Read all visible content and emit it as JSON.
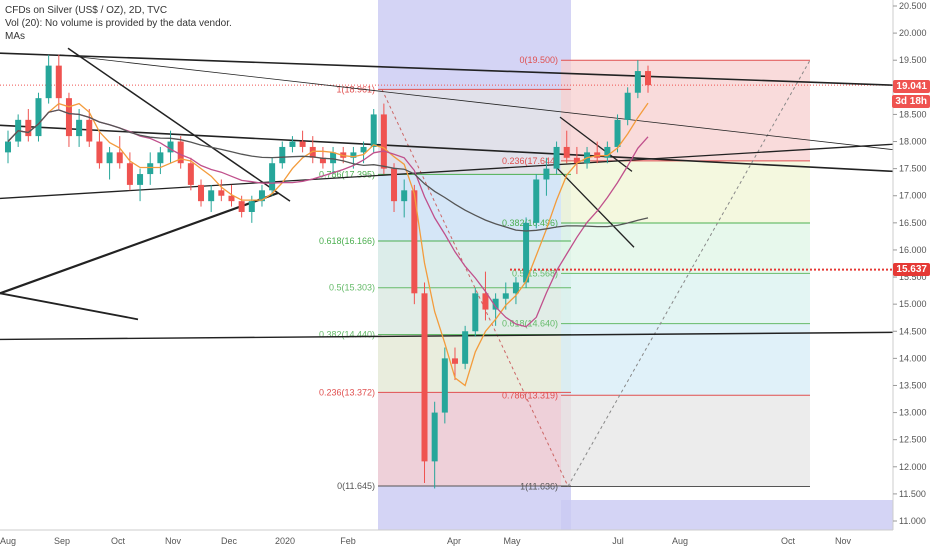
{
  "header": {
    "title": "CFDs on Silver (US$ / OZ), 2D, TVC",
    "volume_note": "Vol (20): No volume is provided by the data vendor.",
    "indicator": "MAs"
  },
  "colors": {
    "up": "#26a69a",
    "down": "#ef5350",
    "ma_fast": "#f39c3c",
    "ma_mid": "#c0508c",
    "ma_slow": "#555555",
    "trendline": "#222222",
    "price_tag": "#ef5350",
    "level_tag": "#e53935"
  },
  "price_tags": {
    "last": "19.041",
    "countdown": "3d 18h",
    "level": "15.637"
  },
  "chart_data": {
    "type": "candlestick",
    "title": "CFDs on Silver (US$ / OZ), 2D, TVC",
    "ylim": [
      10.8,
      20.6
    ],
    "y_ticks": [
      "20.500",
      "20.000",
      "19.500",
      "19.000",
      "18.500",
      "18.000",
      "17.500",
      "17.000",
      "16.500",
      "16.000",
      "15.500",
      "15.000",
      "14.500",
      "14.000",
      "13.500",
      "13.000",
      "12.500",
      "12.000",
      "11.500",
      "11.000"
    ],
    "x_ticks": [
      "Aug",
      "Sep",
      "Oct",
      "Nov",
      "Dec",
      "2020",
      "Feb",
      "Apr",
      "May",
      "Jul",
      "Aug",
      "Oct",
      "Nov"
    ],
    "fib_left": {
      "levels": [
        {
          "label": "1(18.961)",
          "value": 18.961
        },
        {
          "label": "0.786(17.395)",
          "value": 17.395
        },
        {
          "label": "0.618(16.166)",
          "value": 16.166
        },
        {
          "label": "0.5(15.303)",
          "value": 15.303
        },
        {
          "label": "0.382(14.440)",
          "value": 14.44
        },
        {
          "label": "0.236(13.372)",
          "value": 13.372
        },
        {
          "label": "0(11.645)",
          "value": 11.645
        }
      ]
    },
    "fib_right": {
      "levels": [
        {
          "label": "0(19.500)",
          "value": 19.5
        },
        {
          "label": "0.236(17.644)",
          "value": 17.644
        },
        {
          "label": "0.382(16.496)",
          "value": 16.496
        },
        {
          "label": "0.5(15.568)",
          "value": 15.568
        },
        {
          "label": "0.618(14.640)",
          "value": 14.64
        },
        {
          "label": "0.786(13.319)",
          "value": 13.319
        },
        {
          "label": "1(11.636)",
          "value": 11.636
        }
      ]
    },
    "candles": [
      [
        17.8,
        18.2,
        17.6,
        18.0
      ],
      [
        18.0,
        18.5,
        17.9,
        18.4
      ],
      [
        18.4,
        18.6,
        18.0,
        18.1
      ],
      [
        18.1,
        18.9,
        18.0,
        18.8
      ],
      [
        18.8,
        19.6,
        18.7,
        19.4
      ],
      [
        19.4,
        19.6,
        18.6,
        18.8
      ],
      [
        18.8,
        18.9,
        17.9,
        18.1
      ],
      [
        18.1,
        18.6,
        17.9,
        18.4
      ],
      [
        18.4,
        18.6,
        17.9,
        18.0
      ],
      [
        18.0,
        18.2,
        17.5,
        17.6
      ],
      [
        17.6,
        17.9,
        17.3,
        17.8
      ],
      [
        17.8,
        18.1,
        17.5,
        17.6
      ],
      [
        17.6,
        17.8,
        17.1,
        17.2
      ],
      [
        17.2,
        17.5,
        16.9,
        17.4
      ],
      [
        17.4,
        17.8,
        17.2,
        17.6
      ],
      [
        17.6,
        17.9,
        17.4,
        17.8
      ],
      [
        17.8,
        18.2,
        17.6,
        18.0
      ],
      [
        18.0,
        18.1,
        17.5,
        17.6
      ],
      [
        17.6,
        17.7,
        17.1,
        17.2
      ],
      [
        17.2,
        17.3,
        16.8,
        16.9
      ],
      [
        16.9,
        17.2,
        16.7,
        17.1
      ],
      [
        17.1,
        17.3,
        16.9,
        17.0
      ],
      [
        17.0,
        17.2,
        16.8,
        16.9
      ],
      [
        16.9,
        17.0,
        16.6,
        16.7
      ],
      [
        16.7,
        17.0,
        16.5,
        16.9
      ],
      [
        16.9,
        17.2,
        16.8,
        17.1
      ],
      [
        17.1,
        17.7,
        17.0,
        17.6
      ],
      [
        17.6,
        18.0,
        17.5,
        17.9
      ],
      [
        17.9,
        18.1,
        17.8,
        18.0
      ],
      [
        18.0,
        18.2,
        17.8,
        17.9
      ],
      [
        17.9,
        18.1,
        17.6,
        17.7
      ],
      [
        17.7,
        17.9,
        17.5,
        17.6
      ],
      [
        17.6,
        17.9,
        17.4,
        17.8
      ],
      [
        17.8,
        17.9,
        17.6,
        17.7
      ],
      [
        17.7,
        17.9,
        17.5,
        17.8
      ],
      [
        17.8,
        18.0,
        17.6,
        17.9
      ],
      [
        17.9,
        18.6,
        17.8,
        18.5
      ],
      [
        18.5,
        18.7,
        17.4,
        17.5
      ],
      [
        17.5,
        17.6,
        16.7,
        16.9
      ],
      [
        16.9,
        17.3,
        16.6,
        17.1
      ],
      [
        17.1,
        17.2,
        15.0,
        15.2
      ],
      [
        15.2,
        15.4,
        11.7,
        12.1
      ],
      [
        12.1,
        13.2,
        11.6,
        13.0
      ],
      [
        13.0,
        14.2,
        12.8,
        14.0
      ],
      [
        14.0,
        14.2,
        13.6,
        13.9
      ],
      [
        13.9,
        14.6,
        13.8,
        14.5
      ],
      [
        14.5,
        15.3,
        14.4,
        15.2
      ],
      [
        15.2,
        15.6,
        14.7,
        14.9
      ],
      [
        14.9,
        15.2,
        14.6,
        15.1
      ],
      [
        15.1,
        15.4,
        14.9,
        15.2
      ],
      [
        15.2,
        15.5,
        15.0,
        15.4
      ],
      [
        15.4,
        16.6,
        15.3,
        16.5
      ],
      [
        16.5,
        17.4,
        16.4,
        17.3
      ],
      [
        17.3,
        17.7,
        17.0,
        17.5
      ],
      [
        17.5,
        18.0,
        17.4,
        17.9
      ],
      [
        17.9,
        18.2,
        17.6,
        17.7
      ],
      [
        17.7,
        17.9,
        17.4,
        17.6
      ],
      [
        17.6,
        17.9,
        17.5,
        17.8
      ],
      [
        17.8,
        18.0,
        17.6,
        17.7
      ],
      [
        17.7,
        18.0,
        17.6,
        17.9
      ],
      [
        17.9,
        18.5,
        17.8,
        18.4
      ],
      [
        18.4,
        19.0,
        18.3,
        18.9
      ],
      [
        18.9,
        19.5,
        18.8,
        19.3
      ],
      [
        19.3,
        19.4,
        18.9,
        19.04
      ]
    ]
  }
}
